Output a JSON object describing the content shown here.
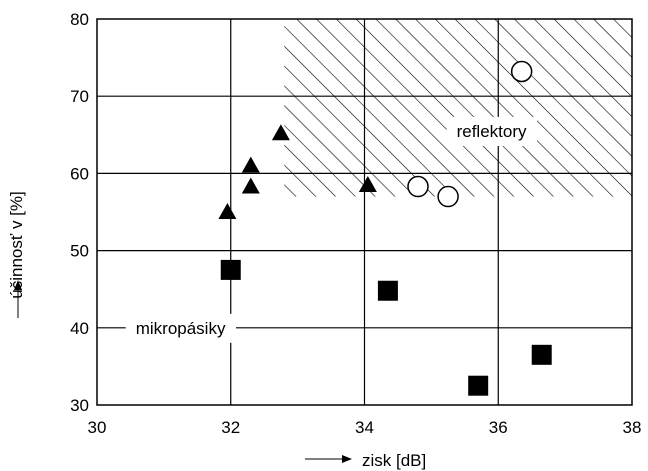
{
  "chart_data": {
    "type": "scatter",
    "xlabel": "zisk [dB]",
    "ylabel": "účinnosť v [%]",
    "xlim": [
      30,
      38
    ],
    "ylim": [
      30,
      80
    ],
    "xticks": [
      "30",
      "32",
      "34",
      "36",
      "38"
    ],
    "yticks": [
      "30",
      "40",
      "50",
      "60",
      "70",
      "80"
    ],
    "grid": true,
    "series": [
      {
        "marker": "triangle",
        "points": [
          [
            31.95,
            55.0
          ],
          [
            32.3,
            61.0
          ],
          [
            32.3,
            58.3
          ],
          [
            32.75,
            65.2
          ],
          [
            34.05,
            58.5
          ]
        ]
      },
      {
        "marker": "circle",
        "points": [
          [
            34.8,
            58.3
          ],
          [
            35.25,
            57.0
          ],
          [
            36.35,
            73.2
          ]
        ]
      },
      {
        "marker": "square",
        "points": [
          [
            32.0,
            47.5
          ],
          [
            34.35,
            44.8
          ],
          [
            35.7,
            32.5
          ],
          [
            36.65,
            36.5
          ]
        ]
      }
    ],
    "annotations": [
      {
        "text": "reflektory",
        "x": 35.9,
        "y": 65.5
      },
      {
        "text": "mikropásiky",
        "x": 31.25,
        "y": 40.0
      }
    ],
    "hatched_region": {
      "x": [
        32.8,
        38
      ],
      "y": [
        57,
        80
      ]
    }
  }
}
